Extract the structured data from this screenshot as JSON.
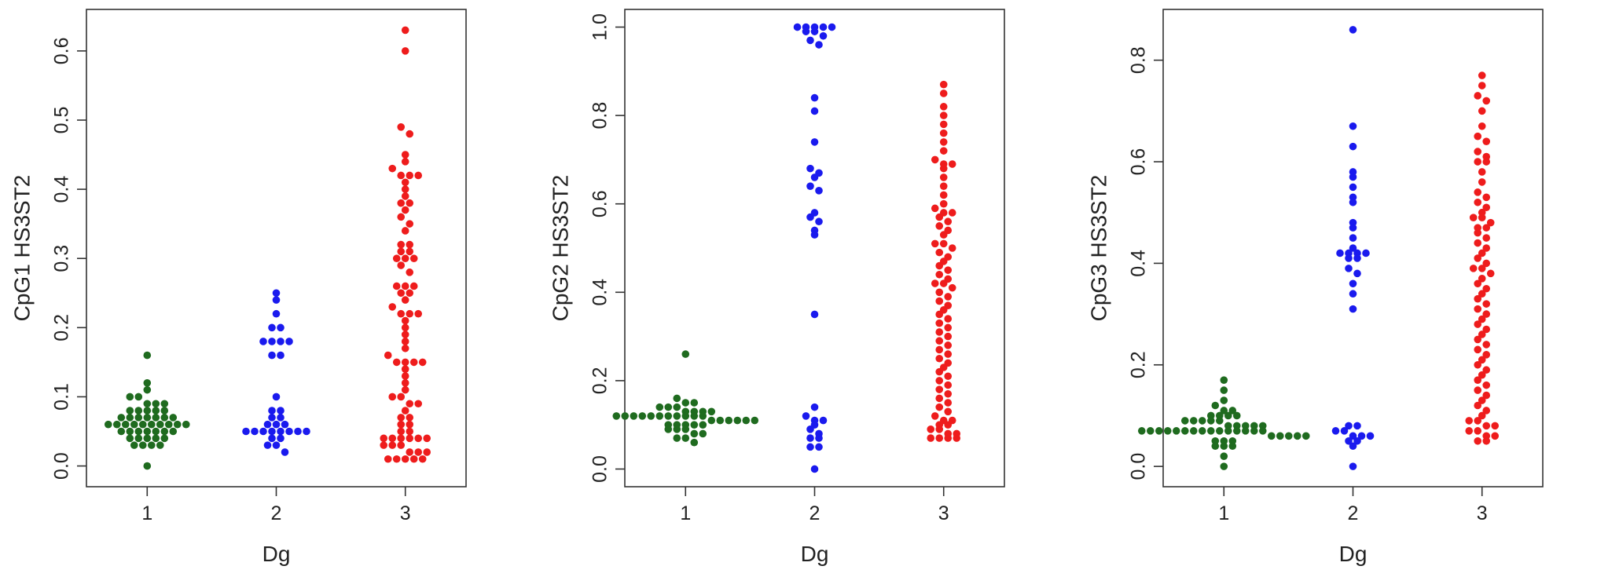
{
  "chart_data": [
    {
      "type": "scatter",
      "subtype": "beeswarm",
      "xlabel": "Dg",
      "ylabel": "CpG1 HS3ST2",
      "categories": [
        "1",
        "2",
        "3"
      ],
      "ylim": [
        -0.03,
        0.66
      ],
      "yticks": [
        "0.0",
        "0.1",
        "0.2",
        "0.3",
        "0.4",
        "0.5",
        "0.6"
      ],
      "grid": false,
      "series": [
        {
          "category": "1",
          "color": "#1f6b1f",
          "values": [
            0.16,
            0.12,
            0.11,
            0.1,
            0.1,
            0.09,
            0.09,
            0.09,
            0.08,
            0.08,
            0.08,
            0.08,
            0.08,
            0.07,
            0.07,
            0.07,
            0.07,
            0.07,
            0.07,
            0.07,
            0.06,
            0.06,
            0.06,
            0.06,
            0.06,
            0.06,
            0.06,
            0.06,
            0.06,
            0.06,
            0.05,
            0.05,
            0.05,
            0.05,
            0.05,
            0.05,
            0.05,
            0.04,
            0.04,
            0.04,
            0.04,
            0.04,
            0.03,
            0.03,
            0.03,
            0.03,
            0.0
          ]
        },
        {
          "category": "2",
          "color": "#1a1aee",
          "values": [
            0.25,
            0.24,
            0.22,
            0.2,
            0.2,
            0.18,
            0.18,
            0.18,
            0.18,
            0.16,
            0.16,
            0.1,
            0.08,
            0.08,
            0.07,
            0.07,
            0.06,
            0.06,
            0.06,
            0.05,
            0.05,
            0.05,
            0.05,
            0.05,
            0.05,
            0.05,
            0.05,
            0.04,
            0.04,
            0.03,
            0.03,
            0.02
          ]
        },
        {
          "category": "3",
          "color": "#ee1c1c",
          "values": [
            0.63,
            0.6,
            0.49,
            0.48,
            0.45,
            0.44,
            0.43,
            0.42,
            0.42,
            0.42,
            0.41,
            0.4,
            0.39,
            0.38,
            0.38,
            0.37,
            0.36,
            0.35,
            0.34,
            0.32,
            0.32,
            0.31,
            0.31,
            0.3,
            0.3,
            0.3,
            0.29,
            0.28,
            0.26,
            0.26,
            0.26,
            0.25,
            0.25,
            0.24,
            0.23,
            0.22,
            0.22,
            0.22,
            0.21,
            0.2,
            0.19,
            0.18,
            0.17,
            0.16,
            0.15,
            0.15,
            0.15,
            0.15,
            0.14,
            0.13,
            0.12,
            0.11,
            0.1,
            0.1,
            0.09,
            0.09,
            0.08,
            0.07,
            0.07,
            0.06,
            0.06,
            0.05,
            0.05,
            0.04,
            0.04,
            0.04,
            0.04,
            0.04,
            0.04,
            0.03,
            0.03,
            0.03,
            0.02,
            0.02,
            0.02,
            0.01,
            0.01,
            0.01,
            0.01,
            0.01
          ]
        }
      ]
    },
    {
      "type": "scatter",
      "subtype": "beeswarm",
      "xlabel": "Dg",
      "ylabel": "CpG2 HS3ST2",
      "categories": [
        "1",
        "2",
        "3"
      ],
      "ylim": [
        -0.04,
        1.04
      ],
      "yticks": [
        "0.0",
        "0.2",
        "0.4",
        "0.6",
        "0.8",
        "1.0"
      ],
      "grid": false,
      "series": [
        {
          "category": "1",
          "color": "#1f6b1f",
          "values": [
            0.26,
            0.16,
            0.15,
            0.15,
            0.14,
            0.14,
            0.14,
            0.13,
            0.13,
            0.13,
            0.13,
            0.12,
            0.12,
            0.12,
            0.12,
            0.12,
            0.12,
            0.12,
            0.12,
            0.12,
            0.12,
            0.12,
            0.11,
            0.11,
            0.11,
            0.11,
            0.11,
            0.11,
            0.1,
            0.1,
            0.1,
            0.1,
            0.1,
            0.09,
            0.09,
            0.09,
            0.08,
            0.08,
            0.07,
            0.07,
            0.06
          ]
        },
        {
          "category": "2",
          "color": "#1a1aee",
          "values": [
            1.0,
            1.0,
            1.0,
            1.0,
            1.0,
            0.99,
            0.99,
            0.98,
            0.97,
            0.96,
            0.84,
            0.81,
            0.74,
            0.68,
            0.67,
            0.66,
            0.64,
            0.63,
            0.58,
            0.57,
            0.56,
            0.54,
            0.53,
            0.35,
            0.14,
            0.12,
            0.11,
            0.11,
            0.1,
            0.09,
            0.08,
            0.07,
            0.07,
            0.05,
            0.05,
            0.0
          ]
        },
        {
          "category": "3",
          "color": "#ee1c1c",
          "values": [
            0.87,
            0.85,
            0.82,
            0.8,
            0.78,
            0.76,
            0.74,
            0.72,
            0.7,
            0.69,
            0.69,
            0.68,
            0.66,
            0.64,
            0.62,
            0.6,
            0.59,
            0.58,
            0.58,
            0.57,
            0.56,
            0.55,
            0.54,
            0.53,
            0.51,
            0.51,
            0.5,
            0.49,
            0.48,
            0.47,
            0.46,
            0.45,
            0.44,
            0.43,
            0.42,
            0.42,
            0.41,
            0.4,
            0.39,
            0.38,
            0.37,
            0.36,
            0.35,
            0.34,
            0.33,
            0.32,
            0.31,
            0.3,
            0.29,
            0.28,
            0.27,
            0.26,
            0.25,
            0.24,
            0.23,
            0.22,
            0.21,
            0.2,
            0.19,
            0.18,
            0.17,
            0.16,
            0.15,
            0.14,
            0.13,
            0.12,
            0.11,
            0.11,
            0.1,
            0.1,
            0.09,
            0.09,
            0.08,
            0.08,
            0.07,
            0.07,
            0.07,
            0.07
          ]
        }
      ]
    },
    {
      "type": "scatter",
      "subtype": "beeswarm",
      "xlabel": "Dg",
      "ylabel": "CpG3 HS3ST2",
      "categories": [
        "1",
        "2",
        "3"
      ],
      "ylim": [
        -0.04,
        0.9
      ],
      "yticks": [
        "0.0",
        "0.2",
        "0.4",
        "0.6",
        "0.8"
      ],
      "grid": false,
      "series": [
        {
          "category": "1",
          "color": "#1f6b1f",
          "values": [
            0.17,
            0.15,
            0.13,
            0.12,
            0.11,
            0.11,
            0.1,
            0.1,
            0.1,
            0.1,
            0.09,
            0.09,
            0.09,
            0.09,
            0.09,
            0.08,
            0.08,
            0.08,
            0.08,
            0.08,
            0.07,
            0.07,
            0.07,
            0.07,
            0.07,
            0.07,
            0.07,
            0.07,
            0.07,
            0.07,
            0.07,
            0.07,
            0.07,
            0.07,
            0.07,
            0.06,
            0.06,
            0.06,
            0.06,
            0.06,
            0.05,
            0.05,
            0.05,
            0.04,
            0.04,
            0.04,
            0.02,
            0.0
          ]
        },
        {
          "category": "2",
          "color": "#1a1aee",
          "values": [
            0.86,
            0.67,
            0.63,
            0.58,
            0.57,
            0.55,
            0.53,
            0.52,
            0.48,
            0.47,
            0.45,
            0.43,
            0.42,
            0.42,
            0.42,
            0.42,
            0.41,
            0.41,
            0.39,
            0.38,
            0.36,
            0.34,
            0.31,
            0.08,
            0.08,
            0.07,
            0.07,
            0.06,
            0.06,
            0.06,
            0.05,
            0.05,
            0.04,
            0.0
          ]
        },
        {
          "category": "3",
          "color": "#ee1c1c",
          "values": [
            0.77,
            0.75,
            0.73,
            0.72,
            0.7,
            0.67,
            0.65,
            0.64,
            0.62,
            0.61,
            0.6,
            0.6,
            0.58,
            0.56,
            0.54,
            0.53,
            0.52,
            0.51,
            0.5,
            0.49,
            0.49,
            0.48,
            0.47,
            0.47,
            0.46,
            0.45,
            0.44,
            0.43,
            0.42,
            0.41,
            0.4,
            0.39,
            0.39,
            0.38,
            0.37,
            0.36,
            0.35,
            0.34,
            0.33,
            0.32,
            0.31,
            0.3,
            0.29,
            0.28,
            0.27,
            0.26,
            0.25,
            0.24,
            0.23,
            0.22,
            0.21,
            0.2,
            0.19,
            0.18,
            0.17,
            0.16,
            0.15,
            0.14,
            0.13,
            0.12,
            0.11,
            0.1,
            0.09,
            0.09,
            0.08,
            0.08,
            0.07,
            0.07,
            0.06,
            0.06,
            0.05,
            0.05
          ]
        }
      ]
    }
  ]
}
